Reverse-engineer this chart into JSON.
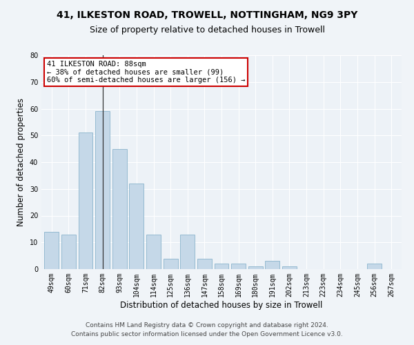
{
  "title": "41, ILKESTON ROAD, TROWELL, NOTTINGHAM, NG9 3PY",
  "subtitle": "Size of property relative to detached houses in Trowell",
  "xlabel": "Distribution of detached houses by size in Trowell",
  "ylabel": "Number of detached properties",
  "categories": [
    "49sqm",
    "60sqm",
    "71sqm",
    "82sqm",
    "93sqm",
    "104sqm",
    "114sqm",
    "125sqm",
    "136sqm",
    "147sqm",
    "158sqm",
    "169sqm",
    "180sqm",
    "191sqm",
    "202sqm",
    "213sqm",
    "223sqm",
    "234sqm",
    "245sqm",
    "256sqm",
    "267sqm"
  ],
  "values": [
    14,
    13,
    51,
    59,
    45,
    32,
    13,
    4,
    13,
    4,
    2,
    2,
    1,
    3,
    1,
    0,
    0,
    0,
    0,
    2,
    0
  ],
  "bar_color": "#c5d8e8",
  "bar_edge_color": "#8ab4cc",
  "highlight_index": 3,
  "highlight_line_color": "#333333",
  "annotation_text": "41 ILKESTON ROAD: 88sqm\n← 38% of detached houses are smaller (99)\n60% of semi-detached houses are larger (156) →",
  "annotation_box_color": "#ffffff",
  "annotation_box_edge_color": "#cc0000",
  "ylim": [
    0,
    80
  ],
  "yticks": [
    0,
    10,
    20,
    30,
    40,
    50,
    60,
    70,
    80
  ],
  "background_color": "#edf2f7",
  "grid_color": "#ffffff",
  "footer_line1": "Contains HM Land Registry data © Crown copyright and database right 2024.",
  "footer_line2": "Contains public sector information licensed under the Open Government Licence v3.0.",
  "title_fontsize": 10,
  "subtitle_fontsize": 9,
  "xlabel_fontsize": 8.5,
  "ylabel_fontsize": 8.5,
  "tick_fontsize": 7,
  "annotation_fontsize": 7.5,
  "footer_fontsize": 6.5
}
